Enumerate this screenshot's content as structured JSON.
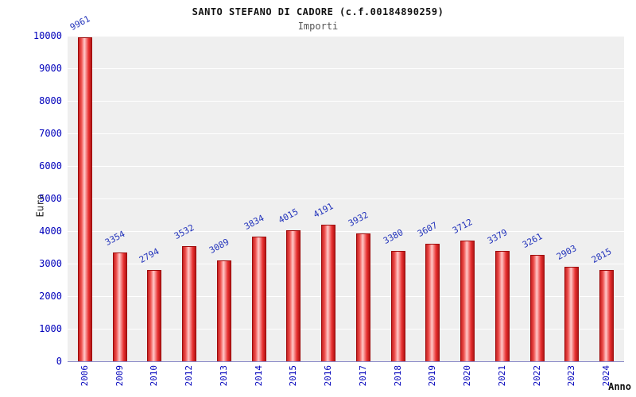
{
  "chart_data": {
    "type": "bar",
    "title": "SANTO STEFANO DI CADORE (c.f.00184890259)",
    "subtitle": "Importi",
    "xlabel": "Anno",
    "ylabel": "Euro",
    "categories": [
      "2006",
      "2009",
      "2010",
      "2012",
      "2013",
      "2014",
      "2015",
      "2016",
      "2017",
      "2018",
      "2019",
      "2020",
      "2021",
      "2022",
      "2023",
      "2024"
    ],
    "values": [
      9961,
      3354,
      2794,
      3532,
      3089,
      3834,
      4015,
      4191,
      3932,
      3380,
      3607,
      3712,
      3379,
      3261,
      2903,
      2815
    ],
    "ylim": [
      0,
      10000
    ],
    "ytick_step": 1000,
    "grid": true,
    "legend": "none",
    "colors": {
      "bar_fill": "#e83030",
      "bar_border": "#9e0b0b",
      "value_label": "#2233bb",
      "tick_label": "#0000bb",
      "plot_bg": "#efefef",
      "grid": "#ffffff",
      "title": "#111111",
      "subtitle": "#555555"
    }
  }
}
